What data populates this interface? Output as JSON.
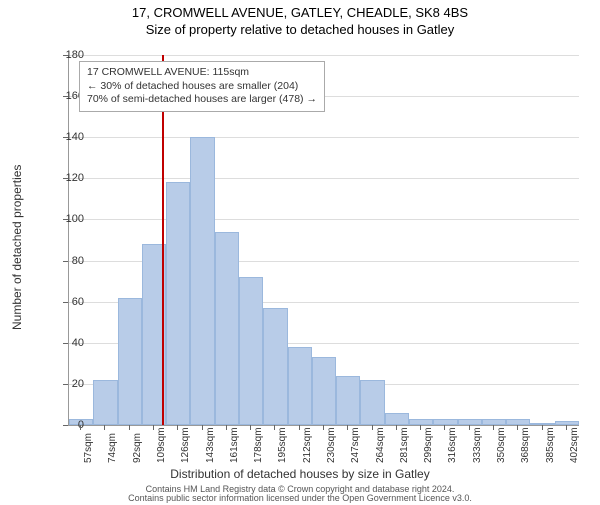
{
  "title_main": "17, CROMWELL AVENUE, GATLEY, CHEADLE, SK8 4BS",
  "title_sub": "Size of property relative to detached houses in Gatley",
  "y_axis_title": "Number of detached properties",
  "x_axis_title": "Distribution of detached houses by size in Gatley",
  "footer": "Contains HM Land Registry data © Crown copyright and database right 2024.\nContains public sector information licensed under the Open Government Licence v3.0.",
  "annotation": {
    "line1": "17 CROMWELL AVENUE: 115sqm",
    "line2": "← 30% of detached houses are smaller (204)",
    "line3": "70% of semi-detached houses are larger (478) →"
  },
  "chart": {
    "type": "histogram",
    "ylim": [
      0,
      180
    ],
    "ytick_step": 20,
    "yticks": [
      0,
      20,
      40,
      60,
      80,
      100,
      120,
      140,
      160,
      180
    ],
    "x_labels": [
      "57sqm",
      "74sqm",
      "92sqm",
      "109sqm",
      "126sqm",
      "143sqm",
      "161sqm",
      "178sqm",
      "195sqm",
      "212sqm",
      "230sqm",
      "247sqm",
      "264sqm",
      "281sqm",
      "299sqm",
      "316sqm",
      "333sqm",
      "350sqm",
      "368sqm",
      "385sqm",
      "402sqm"
    ],
    "bar_values": [
      3,
      22,
      62,
      88,
      118,
      140,
      94,
      72,
      57,
      38,
      33,
      24,
      22,
      6,
      3,
      3,
      3,
      3,
      3,
      0,
      2
    ],
    "bar_fill": "#b8cce8",
    "bar_stroke": "#9bb8dd",
    "grid_color": "#dddddd",
    "background_color": "#ffffff",
    "marker_color": "#c00000",
    "marker_x_value": 115,
    "x_min": 49,
    "x_max": 411,
    "title_fontsize": 13,
    "axis_label_fontsize": 12,
    "tick_fontsize": 11
  }
}
